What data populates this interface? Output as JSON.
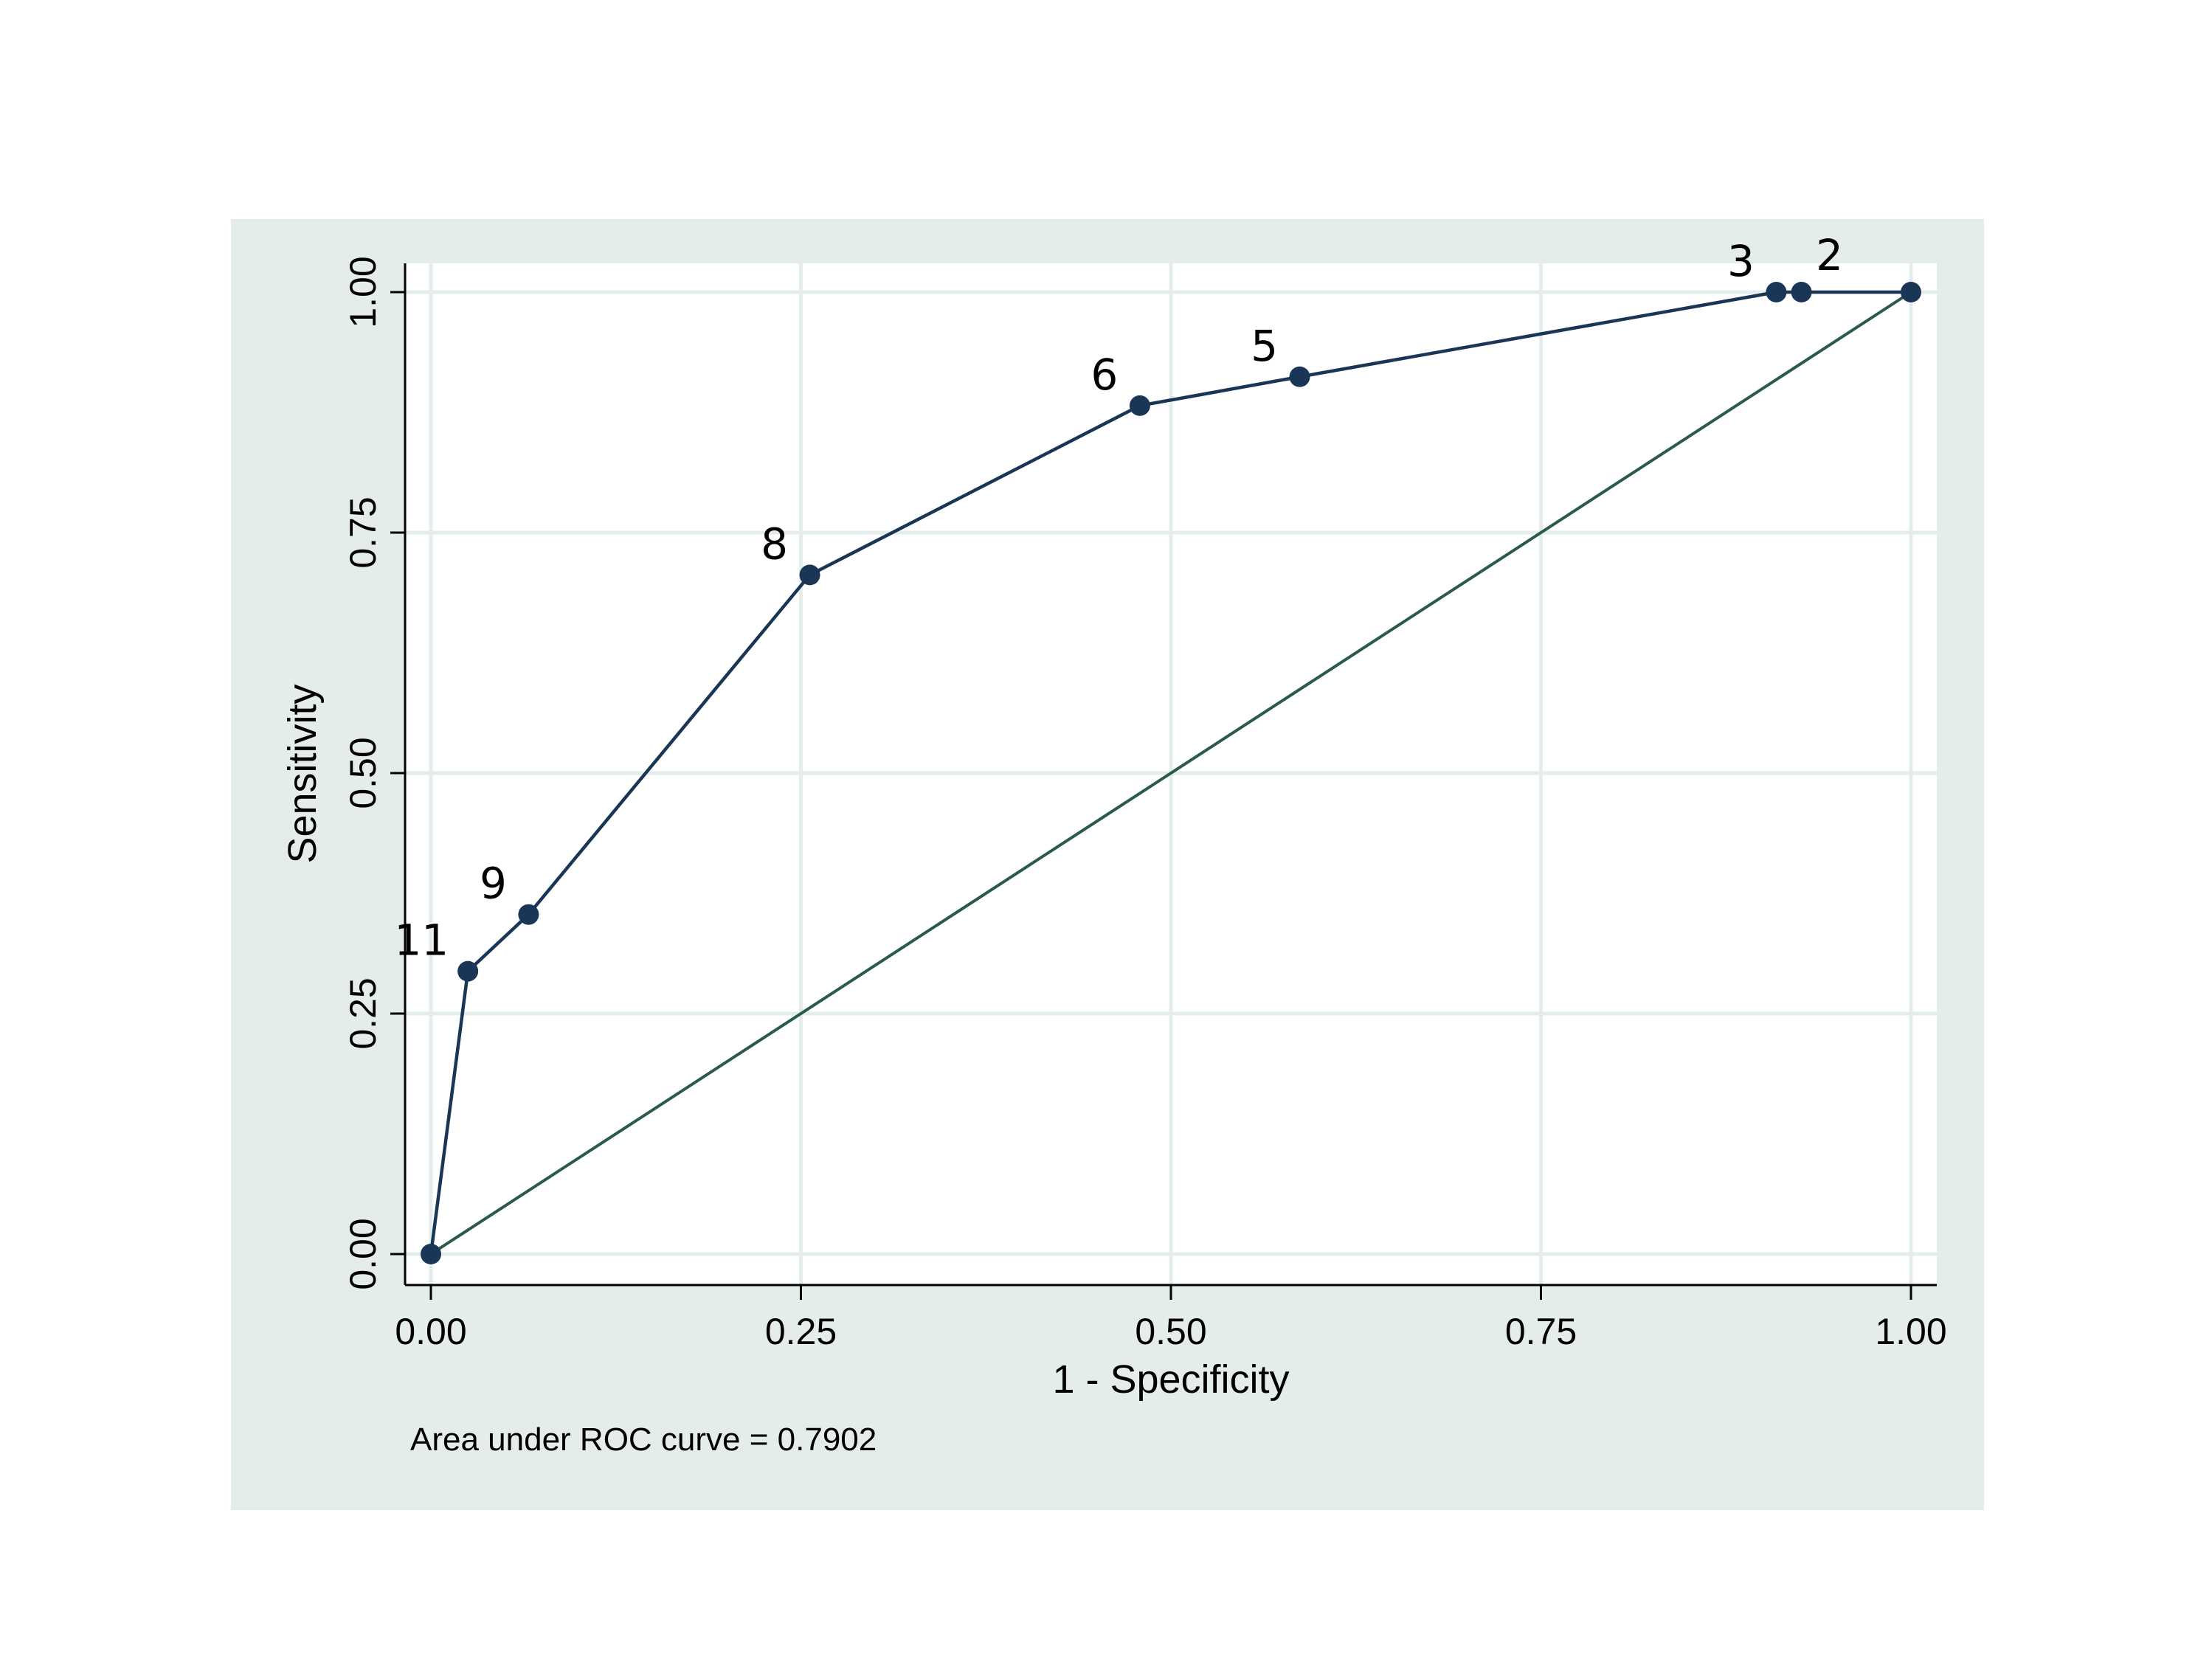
{
  "chart_data": {
    "type": "line",
    "xlabel": "1 - Specificity",
    "ylabel": "Sensitivity",
    "note": "Area under ROC curve = 0.7902",
    "xlim": [
      0,
      1
    ],
    "ylim": [
      0,
      1
    ],
    "xticks": [
      0,
      0.25,
      0.5,
      0.75,
      1
    ],
    "yticks": [
      0,
      0.25,
      0.5,
      0.75,
      1
    ],
    "xtick_labels": [
      "0.00",
      "0.25",
      "0.50",
      "0.75",
      "1.00"
    ],
    "ytick_labels": [
      "0.00",
      "0.25",
      "0.50",
      "0.75",
      "1.00"
    ],
    "grid": true,
    "series": [
      {
        "points": [
          {
            "x": 0.0,
            "y": 0.0,
            "label": ""
          },
          {
            "x": 0.025,
            "y": 0.294,
            "label": "11"
          },
          {
            "x": 0.066,
            "y": 0.353,
            "label": "9"
          },
          {
            "x": 0.256,
            "y": 0.706,
            "label": "8"
          },
          {
            "x": 0.479,
            "y": 0.882,
            "label": "6"
          },
          {
            "x": 0.587,
            "y": 0.912,
            "label": "5"
          },
          {
            "x": 0.909,
            "y": 1.0,
            "label": "3"
          },
          {
            "x": 0.926,
            "y": 1.0,
            "label": "2"
          },
          {
            "x": 1.0,
            "y": 1.0,
            "label": ""
          }
        ]
      },
      {
        "reference": true,
        "points": [
          {
            "x": 0,
            "y": 0
          },
          {
            "x": 1,
            "y": 1
          }
        ]
      }
    ],
    "colors": {
      "outer_background": "#e4ecec",
      "plot_background": "#ffffff",
      "grid": "#e4ecec",
      "curve": "#1a3657",
      "reference_line": "#2a5a4c",
      "axis": "#000000"
    }
  }
}
